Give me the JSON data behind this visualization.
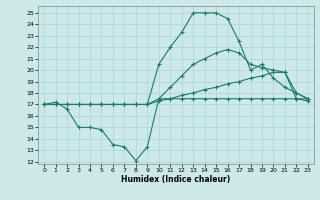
{
  "xlabel": "Humidex (Indice chaleur)",
  "xlim": [
    -0.5,
    23.5
  ],
  "ylim": [
    11.8,
    25.6
  ],
  "yticks": [
    12,
    13,
    14,
    15,
    16,
    17,
    18,
    19,
    20,
    21,
    22,
    23,
    24,
    25
  ],
  "xticks": [
    0,
    1,
    2,
    3,
    4,
    5,
    6,
    7,
    8,
    9,
    10,
    11,
    12,
    13,
    14,
    15,
    16,
    17,
    18,
    19,
    20,
    21,
    22,
    23
  ],
  "line_color": "#1a7a6e",
  "bg_color": "#cde8e8",
  "grid_color": "#b0d8d8",
  "line1_y": [
    17.0,
    17.2,
    16.6,
    15.0,
    15.0,
    14.8,
    13.5,
    13.3,
    12.1,
    13.3,
    17.5,
    17.5,
    17.5,
    17.5,
    17.5,
    17.5,
    17.5,
    17.5,
    17.5,
    17.5,
    17.5,
    17.5,
    17.5,
    17.5
  ],
  "line2_y": [
    17.0,
    17.0,
    17.0,
    17.0,
    17.0,
    17.0,
    17.0,
    17.0,
    17.0,
    17.0,
    17.3,
    17.5,
    17.8,
    18.0,
    18.3,
    18.5,
    18.8,
    19.0,
    19.3,
    19.5,
    19.8,
    19.8,
    17.5,
    17.3
  ],
  "line3_y": [
    17.0,
    17.0,
    17.0,
    17.0,
    17.0,
    17.0,
    17.0,
    17.0,
    17.0,
    17.0,
    17.5,
    18.5,
    19.5,
    20.5,
    21.0,
    21.5,
    21.8,
    21.5,
    20.5,
    20.2,
    20.0,
    19.8,
    18.0,
    17.5
  ],
  "line4_y": [
    17.0,
    17.0,
    17.0,
    17.0,
    17.0,
    17.0,
    17.0,
    17.0,
    17.0,
    17.0,
    20.5,
    22.0,
    23.3,
    25.0,
    25.0,
    25.0,
    24.5,
    22.5,
    20.0,
    20.5,
    19.3,
    18.5,
    18.0,
    17.5
  ]
}
